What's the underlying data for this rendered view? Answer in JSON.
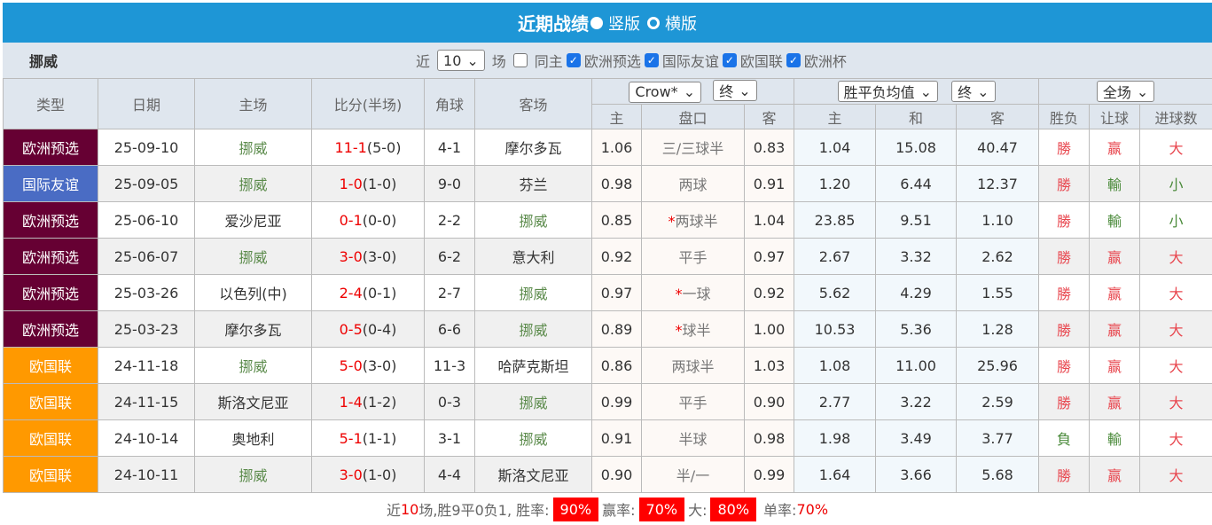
{
  "header": {
    "title": "近期战绩",
    "vertical": "竖版",
    "horizontal": "横版"
  },
  "filter": {
    "team": "挪威",
    "near": "近",
    "count": "10",
    "games": "场",
    "same_home": "同主",
    "leagues": [
      "欧洲预选",
      "国际友谊",
      "欧国联",
      "欧洲杯"
    ]
  },
  "columns": {
    "type": "类型",
    "date": "日期",
    "home": "主场",
    "score": "比分(半场)",
    "corner": "角球",
    "away": "客场",
    "company": "Crow*",
    "time1": "终",
    "avg": "胜平负均值",
    "time2": "终",
    "scope": "全场",
    "sub": [
      "主",
      "盘口",
      "客",
      "主",
      "和",
      "客",
      "胜负",
      "让球",
      "进球数"
    ]
  },
  "colors": {
    "欧洲预选": "#660033",
    "国际友谊": "#4a6cc4",
    "欧国联": "#ff9900"
  },
  "rows": [
    {
      "type": "欧洲预选",
      "date": "25-09-10",
      "home": "挪威",
      "score": "11-1",
      "half": "(5-0)",
      "corner": "4-1",
      "away": "摩尔多瓦",
      "h": "1.06",
      "line": "三/三球半",
      "a": "0.83",
      "eh": "1.04",
      "ed": "15.08",
      "ea": "40.47",
      "wl": "勝",
      "rq": "赢",
      "g": "大"
    },
    {
      "type": "国际友谊",
      "date": "25-09-05",
      "home": "挪威",
      "score": "1-0",
      "half": "(1-0)",
      "corner": "9-0",
      "away": "芬兰",
      "h": "0.98",
      "line": "两球",
      "a": "0.91",
      "eh": "1.20",
      "ed": "6.44",
      "ea": "12.37",
      "wl": "勝",
      "rq": "輸",
      "g": "小"
    },
    {
      "type": "欧洲预选",
      "date": "25-06-10",
      "home": "爱沙尼亚",
      "score": "0-1",
      "half": "(0-0)",
      "corner": "2-2",
      "away": "挪威",
      "h": "0.85",
      "line": "*两球半",
      "a": "1.04",
      "eh": "23.85",
      "ed": "9.51",
      "ea": "1.10",
      "wl": "勝",
      "rq": "輸",
      "g": "小"
    },
    {
      "type": "欧洲预选",
      "date": "25-06-07",
      "home": "挪威",
      "score": "3-0",
      "half": "(3-0)",
      "corner": "6-2",
      "away": "意大利",
      "h": "0.92",
      "line": "平手",
      "a": "0.97",
      "eh": "2.67",
      "ed": "3.32",
      "ea": "2.62",
      "wl": "勝",
      "rq": "赢",
      "g": "大"
    },
    {
      "type": "欧洲预选",
      "date": "25-03-26",
      "home": "以色列(中)",
      "score": "2-4",
      "half": "(0-1)",
      "corner": "2-7",
      "away": "挪威",
      "h": "0.97",
      "line": "*一球",
      "a": "0.92",
      "eh": "5.62",
      "ed": "4.29",
      "ea": "1.55",
      "wl": "勝",
      "rq": "赢",
      "g": "大"
    },
    {
      "type": "欧洲预选",
      "date": "25-03-23",
      "home": "摩尔多瓦",
      "score": "0-5",
      "half": "(0-4)",
      "corner": "6-6",
      "away": "挪威",
      "h": "0.89",
      "line": "*球半",
      "a": "1.00",
      "eh": "10.53",
      "ed": "5.36",
      "ea": "1.28",
      "wl": "勝",
      "rq": "赢",
      "g": "大"
    },
    {
      "type": "欧国联",
      "date": "24-11-18",
      "home": "挪威",
      "score": "5-0",
      "half": "(3-0)",
      "corner": "11-3",
      "away": "哈萨克斯坦",
      "h": "0.86",
      "line": "两球半",
      "a": "1.03",
      "eh": "1.08",
      "ed": "11.00",
      "ea": "25.96",
      "wl": "勝",
      "rq": "赢",
      "g": "大"
    },
    {
      "type": "欧国联",
      "date": "24-11-15",
      "home": "斯洛文尼亚",
      "score": "1-4",
      "half": "(1-2)",
      "corner": "0-3",
      "away": "挪威",
      "h": "0.99",
      "line": "平手",
      "a": "0.90",
      "eh": "2.77",
      "ed": "3.22",
      "ea": "2.59",
      "wl": "勝",
      "rq": "赢",
      "g": "大"
    },
    {
      "type": "欧国联",
      "date": "24-10-14",
      "home": "奥地利",
      "score": "5-1",
      "half": "(1-1)",
      "corner": "3-1",
      "away": "挪威",
      "h": "0.91",
      "line": "半球",
      "a": "0.98",
      "eh": "1.98",
      "ed": "3.49",
      "ea": "3.77",
      "wl": "負",
      "rq": "輸",
      "g": "大"
    },
    {
      "type": "欧国联",
      "date": "24-10-11",
      "home": "挪威",
      "score": "3-0",
      "half": "(1-0)",
      "corner": "4-4",
      "away": "斯洛文尼亚",
      "h": "0.90",
      "line": "半/一",
      "a": "0.99",
      "eh": "1.64",
      "ed": "3.66",
      "ea": "5.68",
      "wl": "勝",
      "rq": "赢",
      "g": "大"
    }
  ],
  "footer": {
    "pre": "近",
    "n": "10",
    "mid": "场,胜9平0负1, 胜率:",
    "win": "90%",
    "ying_label": "赢率:",
    "ying": "70%",
    "da_label": "大:",
    "da": "80%",
    "dan_label": "单率:",
    "dan": "70%"
  }
}
